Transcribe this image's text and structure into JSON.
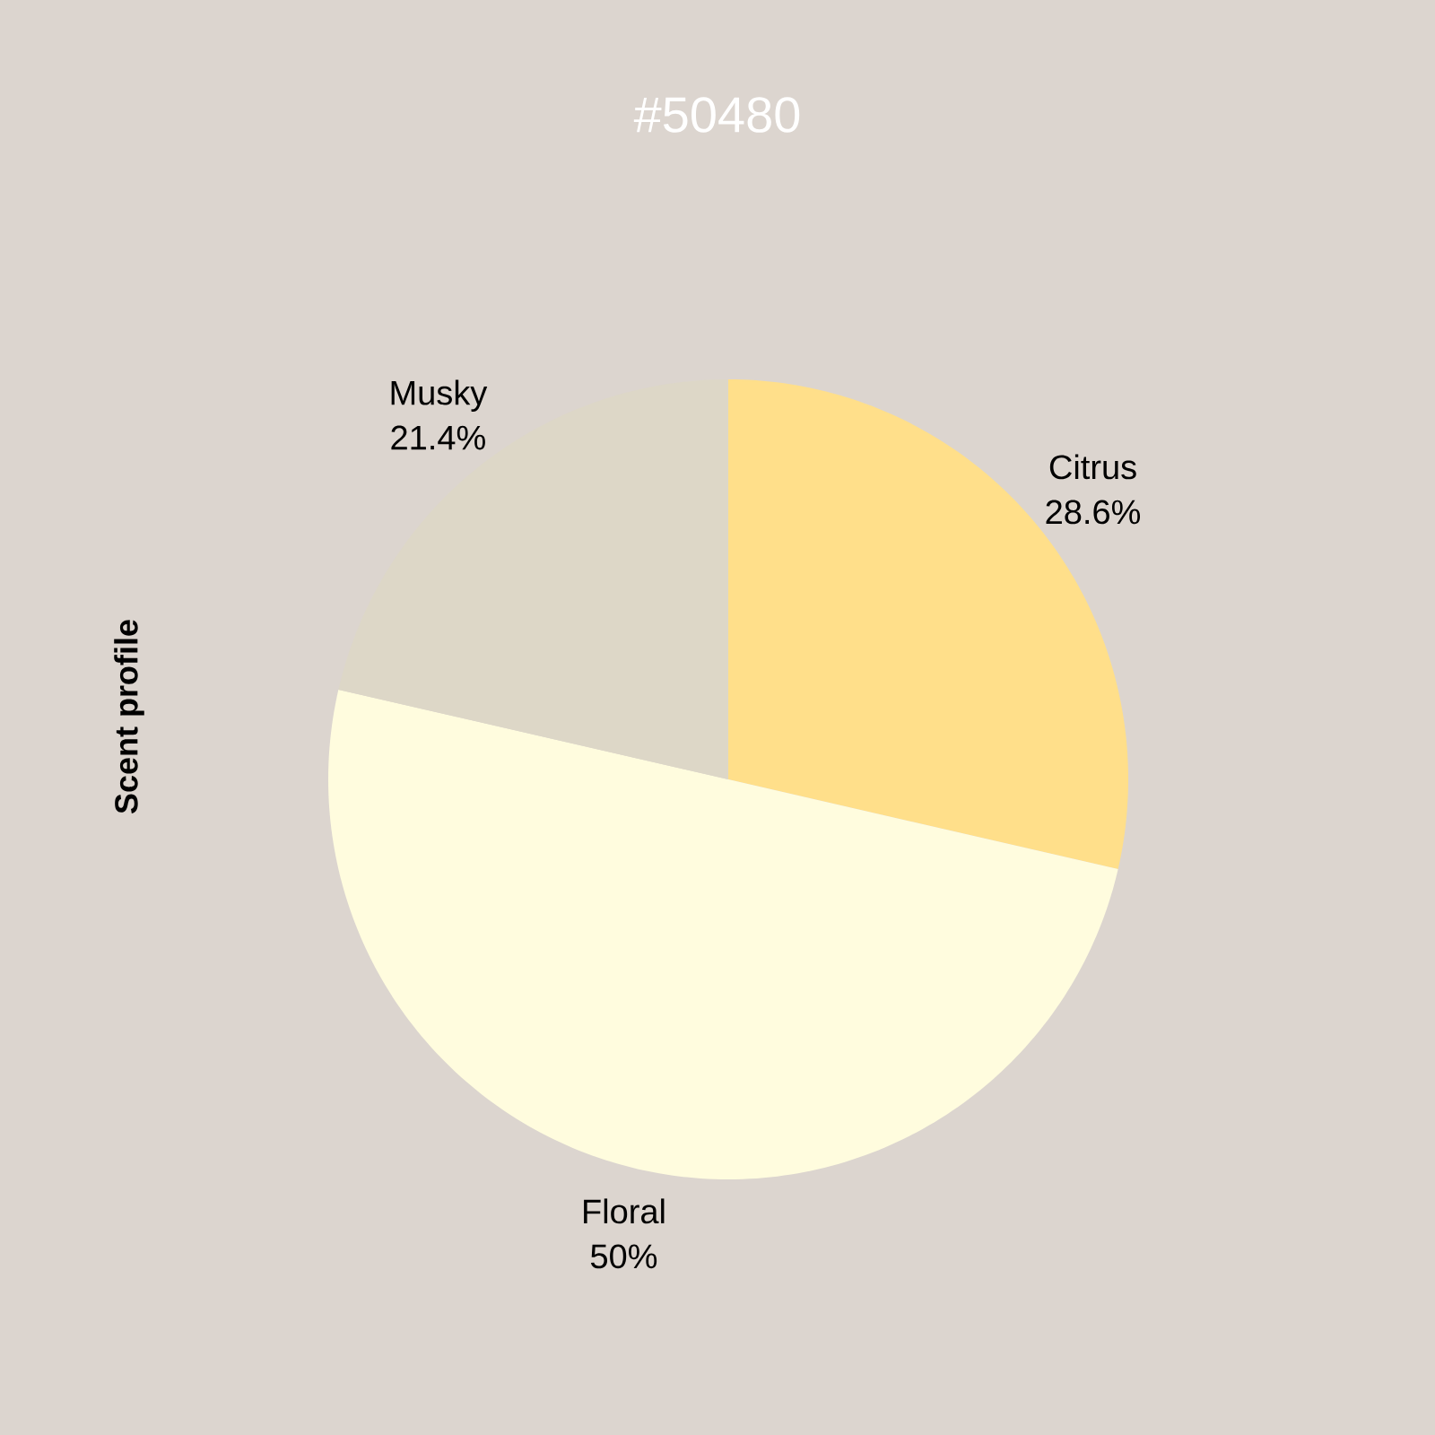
{
  "chart_data": {
    "type": "pie",
    "title": "#50480",
    "ylabel": "Scent profile",
    "categories": [
      "Citrus",
      "Floral",
      "Musky"
    ],
    "values": [
      28.6,
      50,
      21.4
    ],
    "value_labels": [
      "28.6%",
      "50%",
      "21.4%"
    ],
    "colors": [
      "#ffdf8a",
      "#fffcde",
      "#ddd7c7"
    ]
  }
}
